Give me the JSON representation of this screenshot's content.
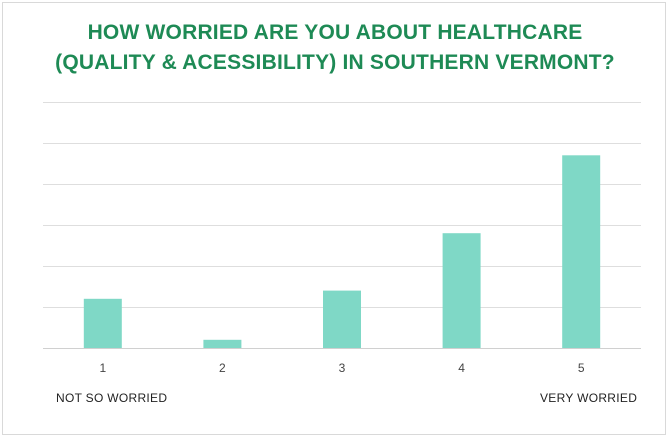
{
  "chart_data": {
    "type": "bar",
    "title_lines": [
      "HOW WORRIED ARE YOU ABOUT HEALTHCARE",
      "(QUALITY & ACESSIBILITY) IN SOUTHERN VERMONT?"
    ],
    "categories": [
      "1",
      "2",
      "3",
      "4",
      "5"
    ],
    "values": [
      12,
      2,
      14,
      28,
      47
    ],
    "ylim": [
      0,
      60
    ],
    "grid": true,
    "y_tick_labels_shown": false,
    "bar_color": "#7fd8c6",
    "title_color": "#1e8a55",
    "scale_notes": {
      "low": "NOT SO WORRIED",
      "high": "VERY WORRIED"
    }
  }
}
